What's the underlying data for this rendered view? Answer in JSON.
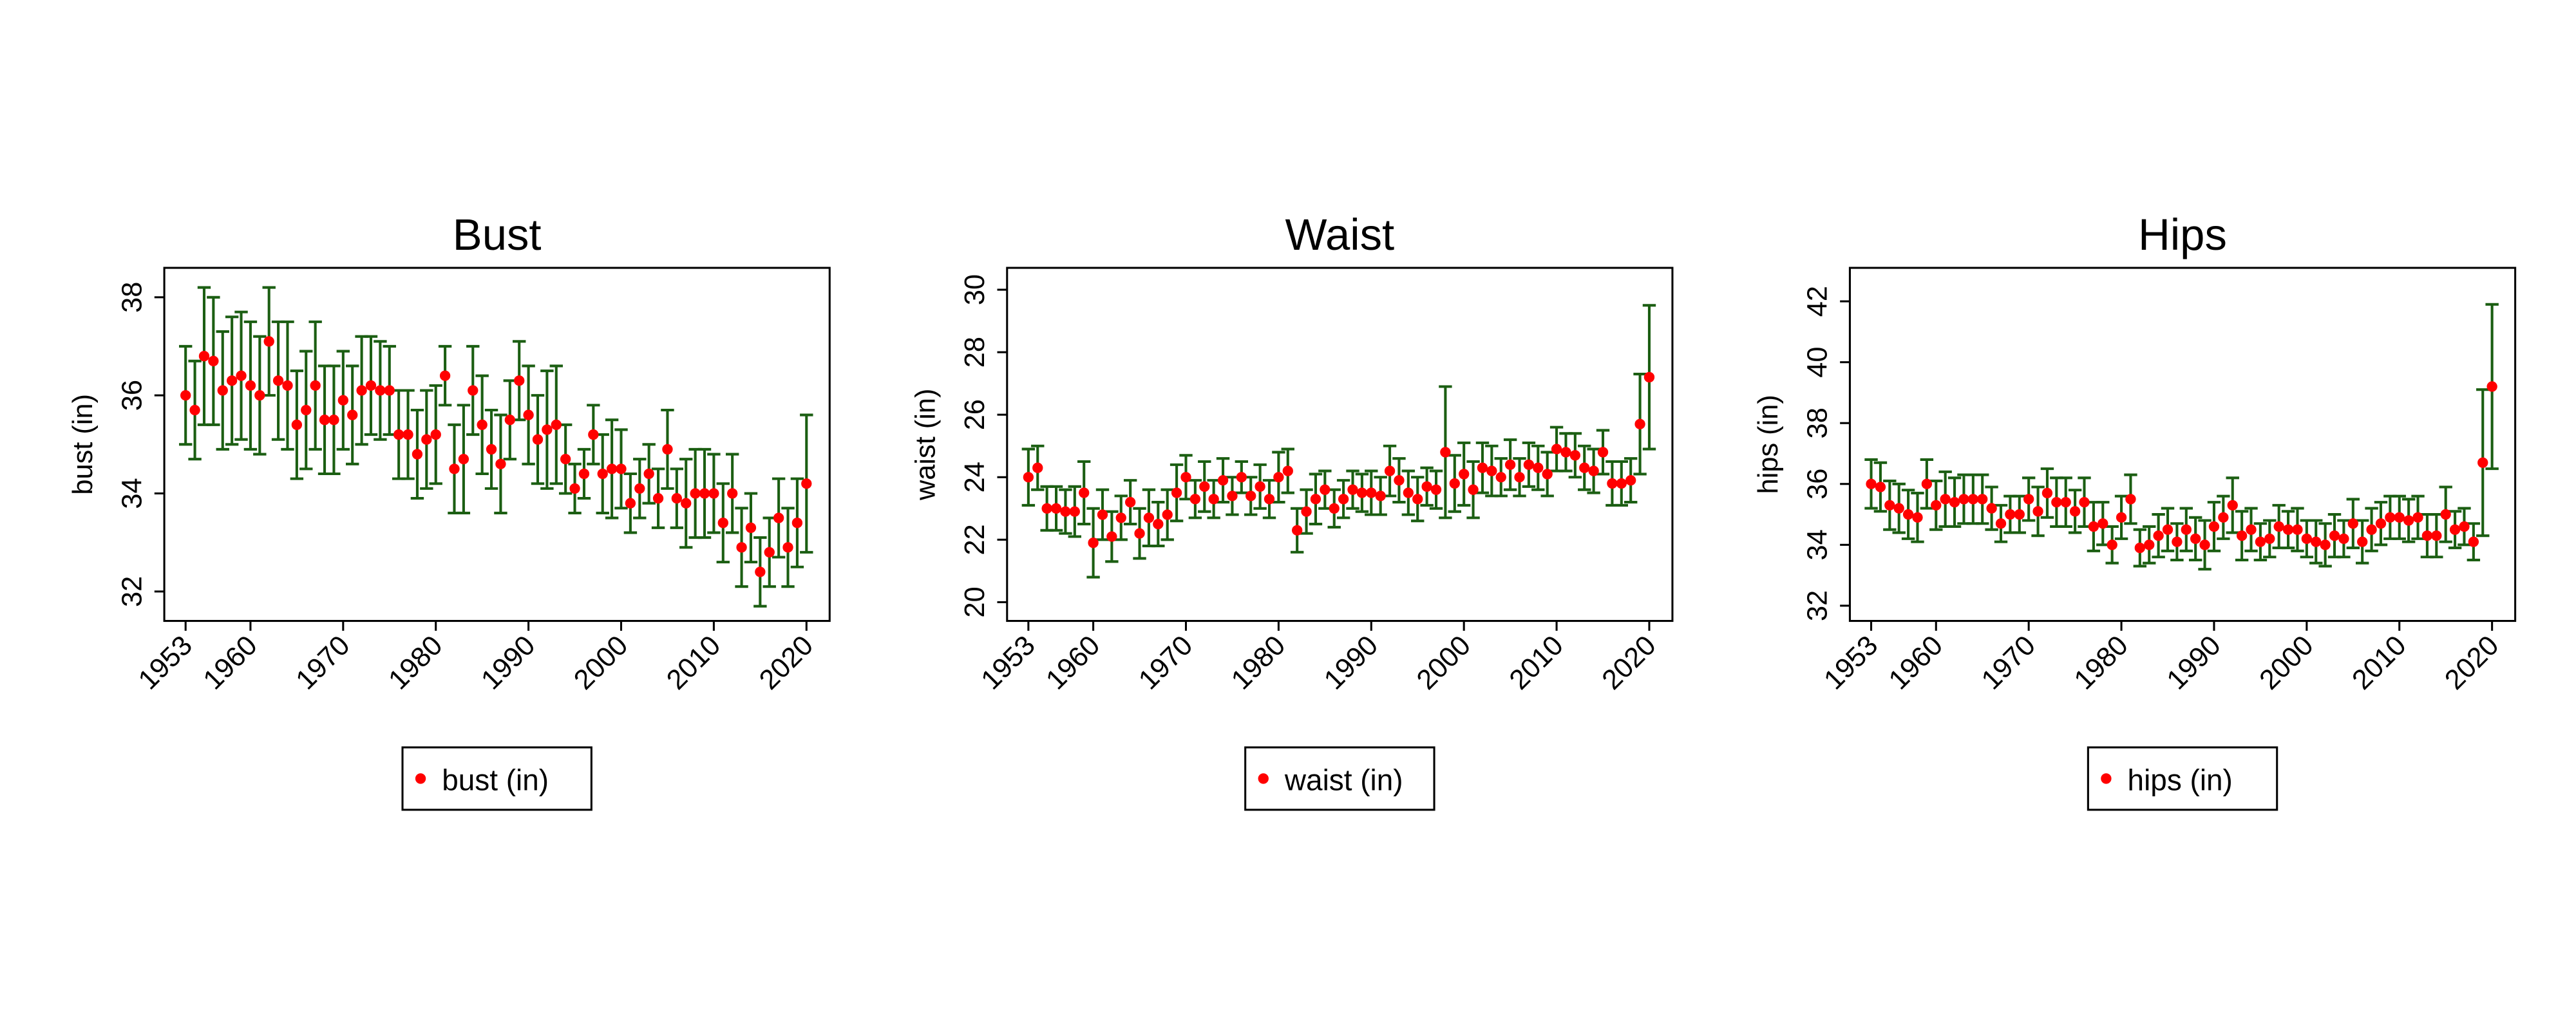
{
  "chart_data": [
    {
      "type": "errorbar",
      "title": "Bust",
      "ylabel": "bust (in)",
      "x": [
        1953,
        1954,
        1955,
        1956,
        1957,
        1958,
        1959,
        1960,
        1961,
        1962,
        1963,
        1964,
        1965,
        1966,
        1967,
        1968,
        1969,
        1970,
        1971,
        1972,
        1973,
        1974,
        1975,
        1976,
        1977,
        1978,
        1979,
        1980,
        1981,
        1982,
        1983,
        1984,
        1985,
        1986,
        1987,
        1988,
        1989,
        1990,
        1991,
        1992,
        1993,
        1994,
        1995,
        1996,
        1997,
        1998,
        1999,
        2000,
        2001,
        2002,
        2003,
        2004,
        2005,
        2006,
        2007,
        2008,
        2009,
        2010,
        2011,
        2012,
        2013,
        2014,
        2015,
        2016,
        2017,
        2018,
        2019,
        2020
      ],
      "series": [
        {
          "name": "bust (in)",
          "color": "#ff0000",
          "error_color": "#1b5e12",
          "values": [
            36.0,
            35.7,
            36.8,
            36.7,
            36.1,
            36.3,
            36.4,
            36.2,
            36.0,
            37.1,
            36.3,
            36.2,
            35.4,
            35.7,
            36.2,
            35.5,
            35.5,
            35.9,
            35.6,
            36.1,
            36.2,
            36.1,
            36.1,
            35.2,
            35.2,
            34.8,
            35.1,
            35.2,
            36.4,
            34.5,
            34.7,
            36.1,
            35.4,
            34.9,
            34.6,
            35.5,
            36.3,
            35.6,
            35.1,
            35.3,
            35.4,
            34.7,
            34.1,
            34.4,
            35.2,
            34.4,
            34.5,
            34.5,
            33.8,
            34.1,
            34.4,
            33.9,
            34.9,
            33.9,
            33.8,
            34.0,
            34.0,
            34.0,
            33.4,
            34.0,
            32.9,
            33.3,
            32.4,
            32.8,
            33.5,
            32.9,
            33.4,
            34.2
          ],
          "errors": [
            1.0,
            1.0,
            1.4,
            1.3,
            1.2,
            1.3,
            1.3,
            1.3,
            1.2,
            1.1,
            1.2,
            1.3,
            1.1,
            1.2,
            1.3,
            1.1,
            1.1,
            1.0,
            1.0,
            1.1,
            1.0,
            1.0,
            0.9,
            0.9,
            0.9,
            0.9,
            1.0,
            1.0,
            0.6,
            0.9,
            1.1,
            0.9,
            1.0,
            0.8,
            1.0,
            0.8,
            0.8,
            1.0,
            0.9,
            1.2,
            1.2,
            0.7,
            0.5,
            0.5,
            0.6,
            0.8,
            1.0,
            0.8,
            0.6,
            0.6,
            0.6,
            0.6,
            0.8,
            0.6,
            0.9,
            0.9,
            0.9,
            0.8,
            0.8,
            0.8,
            0.8,
            0.7,
            0.7,
            0.7,
            0.8,
            0.8,
            0.9,
            1.4
          ]
        }
      ],
      "xlim": [
        1950.7,
        2022.5
      ],
      "xticks": [
        1953,
        1960,
        1970,
        1980,
        1990,
        2000,
        2010,
        2020
      ],
      "ylim": [
        31.4,
        38.6
      ],
      "yticks": [
        32,
        34,
        36,
        38
      ],
      "grid": false
    },
    {
      "type": "errorbar",
      "title": "Waist",
      "ylabel": "waist (in)",
      "x": [
        1953,
        1954,
        1955,
        1956,
        1957,
        1958,
        1959,
        1960,
        1961,
        1962,
        1963,
        1964,
        1965,
        1966,
        1967,
        1968,
        1969,
        1970,
        1971,
        1972,
        1973,
        1974,
        1975,
        1976,
        1977,
        1978,
        1979,
        1980,
        1981,
        1982,
        1983,
        1984,
        1985,
        1986,
        1987,
        1988,
        1989,
        1990,
        1991,
        1992,
        1993,
        1994,
        1995,
        1996,
        1997,
        1998,
        1999,
        2000,
        2001,
        2002,
        2003,
        2004,
        2005,
        2006,
        2007,
        2008,
        2009,
        2010,
        2011,
        2012,
        2013,
        2014,
        2015,
        2016,
        2017,
        2018,
        2019,
        2020
      ],
      "series": [
        {
          "name": "waist (in)",
          "color": "#ff0000",
          "error_color": "#1b5e12",
          "values": [
            24.0,
            24.3,
            23.0,
            23.0,
            22.9,
            22.9,
            23.5,
            21.9,
            22.8,
            22.1,
            22.7,
            23.2,
            22.2,
            22.7,
            22.5,
            22.8,
            23.5,
            24.0,
            23.3,
            23.7,
            23.3,
            23.9,
            23.4,
            24.0,
            23.4,
            23.7,
            23.3,
            24.0,
            24.2,
            22.3,
            22.9,
            23.3,
            23.6,
            23.0,
            23.3,
            23.6,
            23.5,
            23.5,
            23.4,
            24.2,
            23.9,
            23.5,
            23.3,
            23.7,
            23.6,
            24.8,
            23.8,
            24.1,
            23.6,
            24.3,
            24.2,
            24.0,
            24.4,
            24.0,
            24.4,
            24.3,
            24.1,
            24.9,
            24.8,
            24.7,
            24.3,
            24.2,
            24.8,
            23.8,
            23.8,
            23.9,
            25.7,
            27.2
          ],
          "errors": [
            0.9,
            0.7,
            0.7,
            0.7,
            0.7,
            0.8,
            1.0,
            1.1,
            0.8,
            0.8,
            0.7,
            0.7,
            0.8,
            0.9,
            0.7,
            0.8,
            0.9,
            0.7,
            0.6,
            0.8,
            0.6,
            0.7,
            0.6,
            0.5,
            0.6,
            0.7,
            0.6,
            0.8,
            0.7,
            0.7,
            0.7,
            0.8,
            0.6,
            0.6,
            0.6,
            0.6,
            0.6,
            0.7,
            0.6,
            0.8,
            0.7,
            0.7,
            0.7,
            0.6,
            0.6,
            2.1,
            0.9,
            1.0,
            0.9,
            0.8,
            0.8,
            0.6,
            0.8,
            0.6,
            0.7,
            0.7,
            0.7,
            0.7,
            0.6,
            0.7,
            0.7,
            0.7,
            0.7,
            0.7,
            0.7,
            0.7,
            1.6,
            2.3
          ]
        }
      ],
      "xlim": [
        1950.7,
        2022.5
      ],
      "xticks": [
        1953,
        1960,
        1970,
        1980,
        1990,
        2000,
        2010,
        2020
      ],
      "ylim": [
        19.4,
        30.7
      ],
      "yticks": [
        20,
        22,
        24,
        26,
        28,
        30
      ],
      "grid": false
    },
    {
      "type": "errorbar",
      "title": "Hips",
      "ylabel": "hips (in)",
      "x": [
        1953,
        1954,
        1955,
        1956,
        1957,
        1958,
        1959,
        1960,
        1961,
        1962,
        1963,
        1964,
        1965,
        1966,
        1967,
        1968,
        1969,
        1970,
        1971,
        1972,
        1973,
        1974,
        1975,
        1976,
        1977,
        1978,
        1979,
        1980,
        1981,
        1982,
        1983,
        1984,
        1985,
        1986,
        1987,
        1988,
        1989,
        1990,
        1991,
        1992,
        1993,
        1994,
        1995,
        1996,
        1997,
        1998,
        1999,
        2000,
        2001,
        2002,
        2003,
        2004,
        2005,
        2006,
        2007,
        2008,
        2009,
        2010,
        2011,
        2012,
        2013,
        2014,
        2015,
        2016,
        2017,
        2018,
        2019,
        2020
      ],
      "series": [
        {
          "name": "hips (in)",
          "color": "#ff0000",
          "error_color": "#1b5e12",
          "values": [
            36.0,
            35.9,
            35.3,
            35.2,
            35.0,
            34.9,
            36.0,
            35.3,
            35.5,
            35.4,
            35.5,
            35.5,
            35.5,
            35.2,
            34.7,
            35.0,
            35.0,
            35.5,
            35.1,
            35.7,
            35.4,
            35.4,
            35.1,
            35.4,
            34.6,
            34.7,
            34.0,
            34.9,
            35.5,
            33.9,
            34.0,
            34.3,
            34.5,
            34.1,
            34.5,
            34.2,
            34.0,
            34.6,
            34.9,
            35.3,
            34.3,
            34.5,
            34.1,
            34.2,
            34.6,
            34.5,
            34.5,
            34.2,
            34.1,
            34.0,
            34.3,
            34.2,
            34.7,
            34.1,
            34.5,
            34.7,
            34.9,
            34.9,
            34.8,
            34.9,
            34.3,
            34.3,
            35.0,
            34.5,
            34.6,
            34.1,
            36.7,
            39.2
          ],
          "errors": [
            0.8,
            0.8,
            0.8,
            0.8,
            0.8,
            0.8,
            0.8,
            0.8,
            0.9,
            0.8,
            0.8,
            0.8,
            0.8,
            0.7,
            0.6,
            0.6,
            0.6,
            0.7,
            0.8,
            0.8,
            0.8,
            0.8,
            0.7,
            0.8,
            0.8,
            0.7,
            0.6,
            0.7,
            0.8,
            0.6,
            0.6,
            0.7,
            0.7,
            0.6,
            0.7,
            0.7,
            0.8,
            0.8,
            0.7,
            0.9,
            0.8,
            0.7,
            0.6,
            0.6,
            0.7,
            0.6,
            0.7,
            0.6,
            0.7,
            0.7,
            0.7,
            0.6,
            0.8,
            0.7,
            0.7,
            0.7,
            0.7,
            0.7,
            0.7,
            0.7,
            0.7,
            0.7,
            0.9,
            0.6,
            0.6,
            0.6,
            2.4,
            2.7
          ]
        }
      ],
      "xlim": [
        1950.7,
        2022.5
      ],
      "xticks": [
        1953,
        1960,
        1970,
        1980,
        1990,
        2000,
        2010,
        2020
      ],
      "ylim": [
        31.5,
        43.1
      ],
      "yticks": [
        32,
        34,
        36,
        38,
        40,
        42
      ],
      "grid": false
    }
  ]
}
